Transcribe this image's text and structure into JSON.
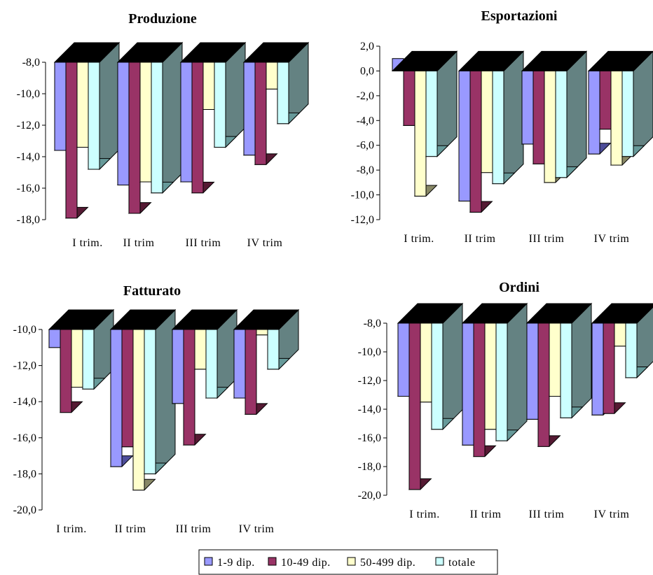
{
  "legend": {
    "entries": [
      {
        "label": "1-9 dip.",
        "color": "#9999ff"
      },
      {
        "label": "10-49 dip.",
        "color": "#993366"
      },
      {
        "label": "50-499 dip.",
        "color": "#ffffcc"
      },
      {
        "label": "totale",
        "color": "#ccffff"
      }
    ]
  },
  "chart_data": [
    {
      "type": "bar",
      "title": "Produzione",
      "categories": [
        "I trim.",
        "II trim",
        "III trim",
        "IV trim"
      ],
      "ylim": [
        -18,
        -8
      ],
      "yticks": [
        "-8,0",
        "-10,0",
        "-12,0",
        "-14,0",
        "-16,0",
        "-18,0"
      ],
      "series": [
        {
          "name": "1-9 dip.",
          "values": [
            -13.6,
            -15.8,
            -15.6,
            -13.9
          ]
        },
        {
          "name": "10-49 dip.",
          "values": [
            -17.9,
            -17.6,
            -16.3,
            -14.5
          ]
        },
        {
          "name": "50-499 dip.",
          "values": [
            -13.4,
            -15.6,
            -11.0,
            -9.7
          ]
        },
        {
          "name": "totale",
          "values": [
            -14.8,
            -16.3,
            -13.4,
            -11.9
          ]
        }
      ]
    },
    {
      "type": "bar",
      "title": "Esportazioni",
      "categories": [
        "I trim.",
        "II trim",
        "III trim",
        "IV trim"
      ],
      "ylim": [
        -12,
        2
      ],
      "yticks": [
        "2,0",
        "0,0",
        "-2,0",
        "-4,0",
        "-6,0",
        "-8,0",
        "-10,0",
        "-12,0"
      ],
      "series": [
        {
          "name": "1-9 dip.",
          "values": [
            1.0,
            -10.5,
            -5.9,
            -6.7
          ]
        },
        {
          "name": "10-49 dip.",
          "values": [
            -4.4,
            -11.4,
            -7.5,
            -4.7
          ]
        },
        {
          "name": "50-499 dip.",
          "values": [
            -10.1,
            -8.2,
            -9.0,
            -7.6
          ]
        },
        {
          "name": "totale",
          "values": [
            -6.9,
            -9.1,
            -8.6,
            -6.9
          ]
        }
      ]
    },
    {
      "type": "bar",
      "title": "Fatturato",
      "categories": [
        "I trim.",
        "II trim",
        "III trim",
        "IV trim"
      ],
      "ylim": [
        -20,
        -10
      ],
      "yticks": [
        "-10,0",
        "-12,0",
        "-14,0",
        "-16,0",
        "-18,0",
        "-20,0"
      ],
      "series": [
        {
          "name": "1-9 dip.",
          "values": [
            -11.0,
            -17.6,
            -14.1,
            -13.8
          ]
        },
        {
          "name": "10-49 dip.",
          "values": [
            -14.6,
            -16.5,
            -16.4,
            -14.7
          ]
        },
        {
          "name": "50-499 dip.",
          "values": [
            -13.2,
            -18.9,
            -12.2,
            -10.3
          ]
        },
        {
          "name": "totale",
          "values": [
            -13.3,
            -18.0,
            -13.8,
            -12.2
          ]
        }
      ]
    },
    {
      "type": "bar",
      "title": "Ordini",
      "categories": [
        "I trim.",
        "II trim",
        "III trim",
        "IV trim"
      ],
      "ylim": [
        -20,
        -8
      ],
      "yticks": [
        "-8,0",
        "-10,0",
        "-12,0",
        "-14,0",
        "-16,0",
        "-18,0",
        "-20,0"
      ],
      "series": [
        {
          "name": "1-9 dip.",
          "values": [
            -13.1,
            -16.5,
            -14.7,
            -14.4
          ]
        },
        {
          "name": "10-49 dip.",
          "values": [
            -19.6,
            -17.3,
            -16.6,
            -14.3
          ]
        },
        {
          "name": "50-499 dip.",
          "values": [
            -13.5,
            -15.4,
            -13.1,
            -9.6
          ]
        },
        {
          "name": "totale",
          "values": [
            -15.4,
            -16.2,
            -14.6,
            -11.8
          ]
        }
      ]
    }
  ]
}
